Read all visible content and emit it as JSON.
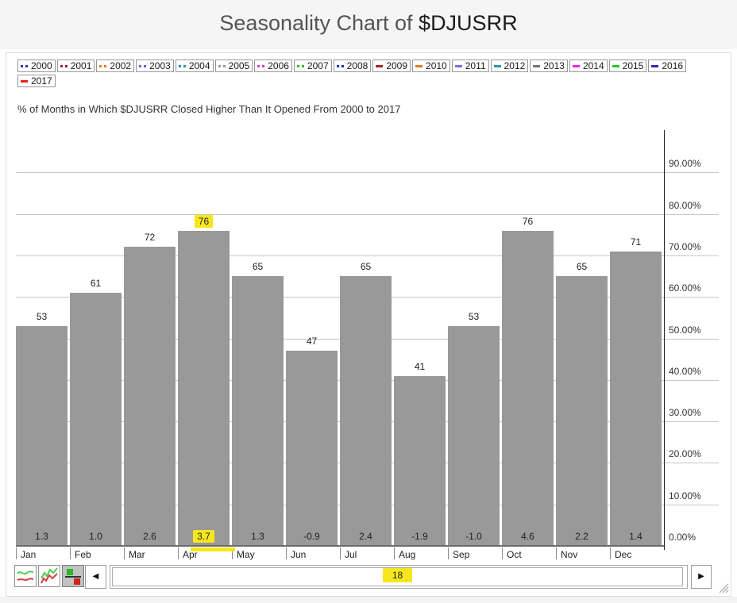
{
  "header": {
    "title_prefix": "Seasonality Chart of ",
    "title_symbol": "$DJUSRR"
  },
  "legend": {
    "years": [
      {
        "label": "2000",
        "color": "#3333bb",
        "marker": "dots"
      },
      {
        "label": "2001",
        "color": "#aa2222",
        "marker": "dots"
      },
      {
        "label": "2002",
        "color": "#ee7722",
        "marker": "dots"
      },
      {
        "label": "2003",
        "color": "#8855cc",
        "marker": "dots"
      },
      {
        "label": "2004",
        "color": "#2299aa",
        "marker": "dots"
      },
      {
        "label": "2005",
        "color": "#999999",
        "marker": "dots"
      },
      {
        "label": "2006",
        "color": "#cc44cc",
        "marker": "dots"
      },
      {
        "label": "2007",
        "color": "#33bb33",
        "marker": "dots"
      },
      {
        "label": "2008",
        "color": "#2233aa",
        "marker": "dots"
      },
      {
        "label": "2009",
        "color": "#aa2222",
        "marker": "dash"
      },
      {
        "label": "2010",
        "color": "#ee7722",
        "marker": "dash"
      },
      {
        "label": "2011",
        "color": "#8866dd",
        "marker": "dash"
      },
      {
        "label": "2012",
        "color": "#2299aa",
        "marker": "dash"
      },
      {
        "label": "2013",
        "color": "#777777",
        "marker": "dash"
      },
      {
        "label": "2014",
        "color": "#ee22ee",
        "marker": "dash"
      },
      {
        "label": "2015",
        "color": "#22cc22",
        "marker": "dash"
      },
      {
        "label": "2016",
        "color": "#3322bb",
        "marker": "dash"
      },
      {
        "label": "2017",
        "color": "#ee2222",
        "marker": "dash"
      }
    ]
  },
  "chart_data": {
    "type": "bar",
    "title": "% of Months in Which $DJUSRR Closed Higher Than It Opened From 2000 to 2017",
    "categories": [
      "Jan",
      "Feb",
      "Mar",
      "Apr",
      "May",
      "Jun",
      "Jul",
      "Aug",
      "Sep",
      "Oct",
      "Nov",
      "Dec"
    ],
    "series": [
      {
        "name": "pct_months_closed_higher",
        "values": [
          53,
          61,
          72,
          76,
          65,
          47,
          65,
          41,
          53,
          76,
          65,
          71
        ]
      },
      {
        "name": "avg_pct_change",
        "values": [
          1.3,
          1.0,
          2.6,
          3.7,
          1.3,
          -0.9,
          2.4,
          -1.9,
          -1.0,
          4.6,
          2.2,
          1.4
        ]
      }
    ],
    "y_ticks": [
      "0.00%",
      "10.00%",
      "20.00%",
      "30.00%",
      "40.00%",
      "50.00%",
      "60.00%",
      "70.00%",
      "80.00%",
      "90.00%"
    ],
    "ylim": [
      0,
      100
    ],
    "grid": "horizontal",
    "legend_position": "top",
    "bar_color": "#999999",
    "highlight": {
      "month_index": 3,
      "color": "#f6e71d"
    }
  },
  "toolbar": {
    "icons": [
      {
        "name": "smooth-lines-chart",
        "selected": false
      },
      {
        "name": "cumulative-lines-chart",
        "selected": false
      },
      {
        "name": "above-below-bars-chart",
        "selected": true
      }
    ]
  },
  "scrollbar": {
    "value": "18",
    "left_arrow": "◀",
    "right_arrow": "▶"
  }
}
